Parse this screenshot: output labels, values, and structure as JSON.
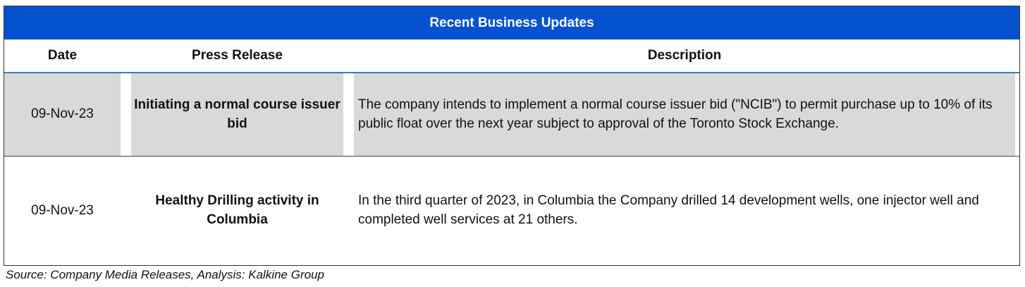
{
  "table": {
    "title": "Recent Business Updates",
    "headers": [
      "Date",
      "Press Release",
      "Description"
    ],
    "rows": [
      {
        "date": "09-Nov-23",
        "press_release": "Initiating a normal course issuer bid",
        "description": "The company intends to implement a normal course issuer bid (\"NCIB\") to permit purchase up to 10% of its public float over the next year subject to approval of the Toronto Stock Exchange."
      },
      {
        "date": "09-Nov-23",
        "press_release": "Healthy Drilling activity in Columbia",
        "description": "In the third quarter of 2023, in Columbia the Company drilled 14 development wells, one injector well and completed well services at 21 others."
      }
    ]
  },
  "source": "Source: Company Media Releases, Analysis: Kalkine Group",
  "colors": {
    "header_blue": "#0452cf",
    "row_gray": "#d9d9d9"
  }
}
